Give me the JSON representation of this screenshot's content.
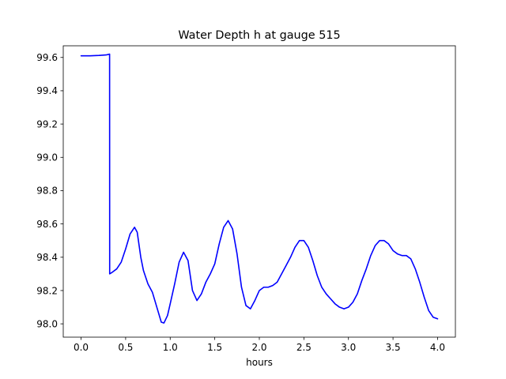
{
  "chart_data": {
    "type": "line",
    "title": "Water Depth h at gauge 515",
    "xlabel": "hours",
    "ylabel": "",
    "xlim": [
      -0.2,
      4.2
    ],
    "ylim": [
      97.92,
      99.67
    ],
    "xticks": [
      0.0,
      0.5,
      1.0,
      1.5,
      2.0,
      2.5,
      3.0,
      3.5,
      4.0
    ],
    "xtick_labels": [
      "0.0",
      "0.5",
      "1.0",
      "1.5",
      "2.0",
      "2.5",
      "3.0",
      "3.5",
      "4.0"
    ],
    "yticks": [
      98.0,
      98.2,
      98.4,
      98.6,
      98.8,
      99.0,
      99.2,
      99.4,
      99.6
    ],
    "ytick_labels": [
      "98.0",
      "98.2",
      "98.4",
      "98.6",
      "98.8",
      "99.0",
      "99.2",
      "99.4",
      "99.6"
    ],
    "grid": false,
    "series": [
      {
        "color": "#0000ff",
        "x": [
          0.0,
          0.1,
          0.2,
          0.28,
          0.32,
          0.321,
          0.35,
          0.4,
          0.45,
          0.5,
          0.55,
          0.6,
          0.63,
          0.67,
          0.7,
          0.75,
          0.8,
          0.85,
          0.9,
          0.93,
          0.97,
          1.0,
          1.05,
          1.1,
          1.15,
          1.2,
          1.25,
          1.3,
          1.35,
          1.4,
          1.45,
          1.5,
          1.55,
          1.6,
          1.65,
          1.7,
          1.75,
          1.8,
          1.85,
          1.9,
          1.95,
          2.0,
          2.05,
          2.1,
          2.15,
          2.2,
          2.25,
          2.3,
          2.35,
          2.4,
          2.45,
          2.5,
          2.55,
          2.6,
          2.65,
          2.7,
          2.75,
          2.8,
          2.85,
          2.9,
          2.95,
          3.0,
          3.05,
          3.1,
          3.15,
          3.2,
          3.25,
          3.3,
          3.35,
          3.4,
          3.45,
          3.5,
          3.55,
          3.6,
          3.65,
          3.7,
          3.75,
          3.8,
          3.85,
          3.9,
          3.95,
          4.0
        ],
        "y": [
          99.61,
          99.61,
          99.612,
          99.615,
          99.62,
          98.3,
          98.31,
          98.33,
          98.37,
          98.45,
          98.54,
          98.58,
          98.55,
          98.4,
          98.32,
          98.24,
          98.19,
          98.1,
          98.01,
          98.005,
          98.05,
          98.12,
          98.24,
          98.37,
          98.43,
          98.38,
          98.2,
          98.14,
          98.18,
          98.25,
          98.3,
          98.36,
          98.48,
          98.58,
          98.62,
          98.57,
          98.42,
          98.22,
          98.11,
          98.09,
          98.14,
          98.2,
          98.22,
          98.22,
          98.23,
          98.25,
          98.3,
          98.35,
          98.4,
          98.46,
          98.5,
          98.5,
          98.46,
          98.38,
          98.29,
          98.22,
          98.18,
          98.15,
          98.12,
          98.1,
          98.09,
          98.1,
          98.13,
          98.18,
          98.26,
          98.33,
          98.41,
          98.47,
          98.5,
          98.5,
          98.48,
          98.44,
          98.42,
          98.41,
          98.41,
          98.39,
          98.33,
          98.25,
          98.16,
          98.08,
          98.04,
          98.03
        ]
      }
    ]
  }
}
